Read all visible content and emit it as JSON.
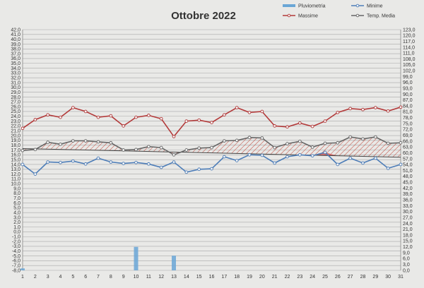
{
  "chart_data": {
    "type": "line",
    "title": "Ottobre 2022",
    "x": [
      1,
      2,
      3,
      4,
      5,
      6,
      7,
      8,
      9,
      10,
      11,
      12,
      13,
      14,
      15,
      16,
      17,
      18,
      19,
      20,
      21,
      22,
      23,
      24,
      25,
      26,
      27,
      28,
      29,
      30,
      31
    ],
    "x_tick_labels": [
      "1",
      "2",
      "3",
      "4",
      "5",
      "6",
      "7",
      "8",
      "9",
      "10",
      "11",
      "12",
      "13",
      "14",
      "15",
      "16",
      "17",
      "18",
      "19",
      "20",
      "21",
      "22",
      "23",
      "24",
      "25",
      "26",
      "27",
      "28",
      "29",
      "30",
      "31"
    ],
    "ylim_left": [
      -8,
      42
    ],
    "y_left_step": 1,
    "ylim_right": [
      0,
      123
    ],
    "y_right_step": 3,
    "grid": true,
    "legend_position": "top-right",
    "series": [
      {
        "name": "Massime",
        "axis": "left",
        "color": "#b33a3a",
        "values": [
          21.5,
          23.3,
          24.3,
          23.8,
          25.8,
          25.0,
          23.8,
          24.1,
          22.0,
          23.8,
          24.2,
          23.5,
          19.8,
          23.0,
          23.2,
          22.7,
          24.3,
          25.8,
          24.8,
          25.0,
          22.0,
          21.8,
          22.6,
          21.9,
          23.0,
          24.8,
          25.6,
          25.4,
          25.8,
          25.1,
          25.9
        ]
      },
      {
        "name": "Minime",
        "axis": "left",
        "color": "#4d7db8",
        "values": [
          14.0,
          12.0,
          14.5,
          14.4,
          14.7,
          14.1,
          15.3,
          14.5,
          14.2,
          14.4,
          14.1,
          13.4,
          14.5,
          12.4,
          13.0,
          13.1,
          15.6,
          14.8,
          16.0,
          15.9,
          14.3,
          15.6,
          16.0,
          15.8,
          16.5,
          14.0,
          15.3,
          14.3,
          15.3,
          13.2,
          14.0
        ]
      },
      {
        "name": "Temp. Media",
        "axis": "left",
        "color": "#666666",
        "values": [
          16.9,
          17.1,
          18.6,
          18.2,
          18.9,
          18.9,
          18.7,
          18.5,
          17.0,
          17.1,
          17.7,
          17.5,
          16.0,
          17.0,
          17.4,
          17.5,
          18.9,
          19.0,
          19.6,
          19.5,
          17.5,
          18.3,
          18.8,
          17.6,
          18.4,
          18.5,
          19.7,
          19.3,
          19.7,
          18.4,
          18.5
        ]
      },
      {
        "name": "Pluviometria",
        "axis": "right",
        "color": "#6aa6d6",
        "type": "bar",
        "values": [
          1.0,
          0,
          0,
          0,
          0,
          0,
          0,
          0,
          0,
          12.0,
          0,
          0,
          7.5,
          0,
          0,
          0,
          0,
          0,
          0,
          0,
          0,
          0,
          0,
          0,
          0,
          0,
          0,
          0,
          0,
          0,
          0
        ]
      }
    ],
    "trend_line": {
      "axis": "left",
      "start": 17.3,
      "end": 15.5
    }
  }
}
